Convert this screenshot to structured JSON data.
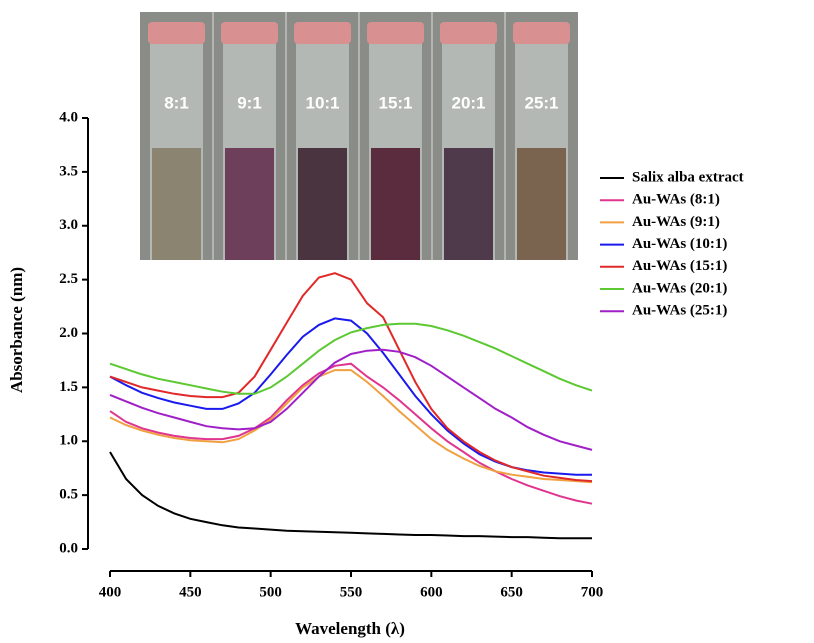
{
  "chart_data": {
    "type": "line",
    "xlabel": "Wavelength (λ)",
    "ylabel": "Absorbance (nm)",
    "xlim": [
      400,
      700
    ],
    "xticks": [
      400,
      450,
      500,
      550,
      600,
      650,
      700
    ],
    "ylim": [
      0,
      4
    ],
    "yticks": [
      {
        "value": 0,
        "label": "0.0"
      },
      {
        "value": 0.5,
        "label": "0.5"
      },
      {
        "value": 1,
        "label": "1.0"
      },
      {
        "value": 1.5,
        "label": "1.5"
      },
      {
        "value": 2,
        "label": "2.0"
      },
      {
        "value": 2.5,
        "label": "2.5"
      },
      {
        "value": 3,
        "label": "3.0"
      },
      {
        "value": 3.5,
        "label": "3.5"
      },
      {
        "value": 4,
        "label": "4.0"
      }
    ],
    "legend": "right",
    "inset_labels": [
      "8:1",
      "9:1",
      "10:1",
      "15:1",
      "20:1",
      "25:1"
    ],
    "x": [
      400,
      410,
      420,
      430,
      440,
      450,
      460,
      470,
      480,
      490,
      500,
      510,
      520,
      530,
      540,
      550,
      560,
      570,
      580,
      590,
      600,
      610,
      620,
      630,
      640,
      650,
      660,
      670,
      680,
      690,
      700
    ],
    "series": [
      {
        "name": "Salix alba extract",
        "color": "#000000",
        "values": [
          0.9,
          0.65,
          0.5,
          0.4,
          0.33,
          0.28,
          0.25,
          0.22,
          0.2,
          0.19,
          0.18,
          0.17,
          0.165,
          0.16,
          0.155,
          0.15,
          0.145,
          0.14,
          0.135,
          0.13,
          0.13,
          0.125,
          0.12,
          0.12,
          0.115,
          0.11,
          0.11,
          0.105,
          0.1,
          0.1,
          0.1
        ]
      },
      {
        "name": "Au-WAs (8:1)",
        "color": "#e0358f",
        "values": [
          1.28,
          1.18,
          1.12,
          1.08,
          1.05,
          1.03,
          1.02,
          1.02,
          1.05,
          1.12,
          1.22,
          1.38,
          1.52,
          1.63,
          1.7,
          1.72,
          1.6,
          1.5,
          1.38,
          1.25,
          1.12,
          1.0,
          0.9,
          0.8,
          0.72,
          0.65,
          0.59,
          0.54,
          0.49,
          0.45,
          0.42
        ]
      },
      {
        "name": "Au-WAs (9:1)",
        "color": "#f0a040",
        "values": [
          1.22,
          1.15,
          1.1,
          1.06,
          1.03,
          1.01,
          1.0,
          0.99,
          1.02,
          1.1,
          1.2,
          1.35,
          1.5,
          1.6,
          1.66,
          1.66,
          1.55,
          1.42,
          1.28,
          1.15,
          1.02,
          0.92,
          0.84,
          0.77,
          0.72,
          0.69,
          0.67,
          0.65,
          0.64,
          0.63,
          0.62
        ]
      },
      {
        "name": "Au-WAs (10:1)",
        "color": "#1a1aee",
        "values": [
          1.6,
          1.52,
          1.45,
          1.4,
          1.36,
          1.33,
          1.3,
          1.3,
          1.35,
          1.45,
          1.62,
          1.8,
          1.97,
          2.08,
          2.14,
          2.12,
          2.0,
          1.82,
          1.62,
          1.42,
          1.25,
          1.1,
          0.98,
          0.88,
          0.81,
          0.76,
          0.73,
          0.71,
          0.7,
          0.69,
          0.69
        ]
      },
      {
        "name": "Au-WAs (15:1)",
        "color": "#e02a2a",
        "values": [
          1.6,
          1.55,
          1.5,
          1.47,
          1.44,
          1.42,
          1.41,
          1.41,
          1.45,
          1.6,
          1.85,
          2.1,
          2.35,
          2.52,
          2.56,
          2.5,
          2.28,
          2.15,
          1.85,
          1.55,
          1.3,
          1.12,
          1.0,
          0.9,
          0.82,
          0.76,
          0.72,
          0.68,
          0.66,
          0.64,
          0.63
        ]
      },
      {
        "name": "Au-WAs (20:1)",
        "color": "#5cc832",
        "values": [
          1.72,
          1.67,
          1.62,
          1.58,
          1.55,
          1.52,
          1.49,
          1.46,
          1.44,
          1.44,
          1.5,
          1.6,
          1.72,
          1.84,
          1.94,
          2.01,
          2.05,
          2.08,
          2.09,
          2.09,
          2.07,
          2.03,
          1.98,
          1.92,
          1.86,
          1.79,
          1.72,
          1.65,
          1.58,
          1.52,
          1.47
        ]
      },
      {
        "name": "Au-WAs (25:1)",
        "color": "#a020c8",
        "values": [
          1.43,
          1.37,
          1.31,
          1.26,
          1.22,
          1.18,
          1.14,
          1.12,
          1.11,
          1.12,
          1.18,
          1.3,
          1.45,
          1.6,
          1.73,
          1.81,
          1.84,
          1.85,
          1.83,
          1.78,
          1.7,
          1.6,
          1.5,
          1.4,
          1.3,
          1.22,
          1.13,
          1.06,
          1.0,
          0.96,
          0.92
        ]
      }
    ]
  }
}
